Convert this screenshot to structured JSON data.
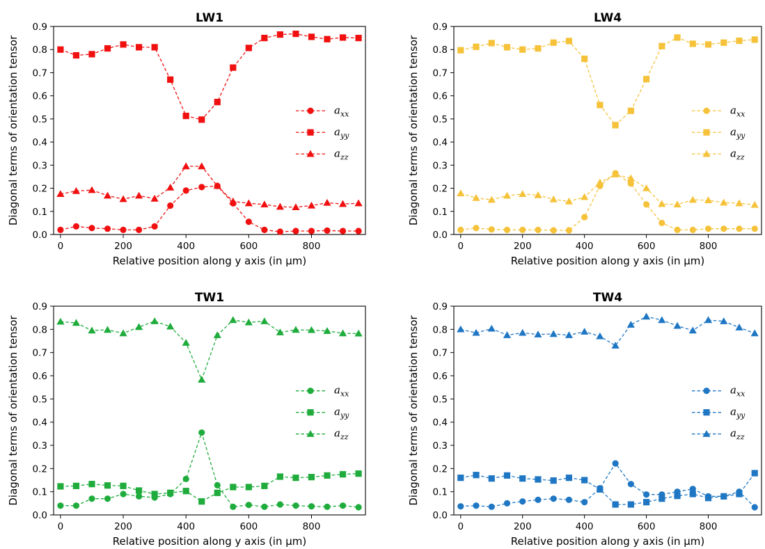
{
  "chart_data": [
    {
      "type": "line",
      "title": "LW1",
      "color": "#f01010",
      "xlabel": "Relative position along y axis (in μm)",
      "ylabel": "Diagonal terms of orientation tensor",
      "xlim": [
        -22,
        972
      ],
      "ylim": [
        0.0,
        0.9
      ],
      "xticks": [
        0,
        200,
        400,
        600,
        800
      ],
      "yticks": [
        0.0,
        0.1,
        0.2,
        0.3,
        0.4,
        0.5,
        0.6,
        0.7,
        0.8,
        0.9
      ],
      "grid": false,
      "legend": "center-right",
      "x": [
        0,
        50,
        100,
        150,
        200,
        250,
        300,
        350,
        400,
        450,
        500,
        550,
        600,
        650,
        700,
        750,
        800,
        850,
        900,
        950
      ],
      "series": [
        {
          "name": "a_xx",
          "legend_base": "a",
          "legend_sub": "xx",
          "marker": "circle",
          "values": [
            0.02,
            0.035,
            0.028,
            0.025,
            0.02,
            0.02,
            0.035,
            0.125,
            0.19,
            0.205,
            0.21,
            0.135,
            0.055,
            0.02,
            0.012,
            0.015,
            0.015,
            0.017,
            0.015,
            0.015
          ]
        },
        {
          "name": "a_yy",
          "legend_base": "a",
          "legend_sub": "yy",
          "marker": "square",
          "values": [
            0.8,
            0.775,
            0.78,
            0.805,
            0.822,
            0.81,
            0.81,
            0.67,
            0.513,
            0.497,
            0.573,
            0.722,
            0.807,
            0.85,
            0.865,
            0.868,
            0.855,
            0.845,
            0.852,
            0.85
          ]
        },
        {
          "name": "a_zz",
          "legend_base": "a",
          "legend_sub": "zz",
          "marker": "triangle",
          "values": [
            0.175,
            0.188,
            0.192,
            0.168,
            0.153,
            0.168,
            0.155,
            0.203,
            0.295,
            0.295,
            0.21,
            0.143,
            0.135,
            0.13,
            0.12,
            0.118,
            0.125,
            0.137,
            0.132,
            0.135
          ]
        }
      ]
    },
    {
      "type": "line",
      "title": "LW4",
      "color": "#f5c23a",
      "xlabel": "Relative position along y axis (in μm)",
      "ylabel": "Diagonal terms of orientation tensor",
      "xlim": [
        -22,
        972
      ],
      "ylim": [
        0.0,
        0.9
      ],
      "xticks": [
        0,
        200,
        400,
        600,
        800
      ],
      "yticks": [
        0.0,
        0.1,
        0.2,
        0.3,
        0.4,
        0.5,
        0.6,
        0.7,
        0.8,
        0.9
      ],
      "grid": false,
      "legend": "center-right",
      "x": [
        0,
        50,
        100,
        150,
        200,
        250,
        300,
        350,
        400,
        450,
        500,
        550,
        600,
        650,
        700,
        750,
        800,
        850,
        900,
        950
      ],
      "series": [
        {
          "name": "a_xx",
          "legend_base": "a",
          "legend_sub": "xx",
          "marker": "circle",
          "values": [
            0.02,
            0.028,
            0.022,
            0.02,
            0.02,
            0.02,
            0.018,
            0.018,
            0.075,
            0.21,
            0.265,
            0.22,
            0.13,
            0.05,
            0.02,
            0.02,
            0.025,
            0.025,
            0.025,
            0.025
          ]
        },
        {
          "name": "a_yy",
          "legend_base": "a",
          "legend_sub": "yy",
          "marker": "square",
          "values": [
            0.797,
            0.812,
            0.828,
            0.81,
            0.8,
            0.805,
            0.83,
            0.837,
            0.76,
            0.56,
            0.473,
            0.535,
            0.672,
            0.815,
            0.852,
            0.825,
            0.822,
            0.83,
            0.838,
            0.843
          ]
        },
        {
          "name": "a_zz",
          "legend_base": "a",
          "legend_sub": "zz",
          "marker": "triangle",
          "values": [
            0.178,
            0.158,
            0.15,
            0.168,
            0.175,
            0.17,
            0.152,
            0.143,
            0.162,
            0.225,
            0.26,
            0.243,
            0.2,
            0.132,
            0.13,
            0.15,
            0.148,
            0.138,
            0.135,
            0.128
          ]
        }
      ]
    },
    {
      "type": "line",
      "title": "TW1",
      "color": "#1fac3c",
      "xlabel": "Relative position along y axis (in μm)",
      "ylabel": "Diagonal terms of orientation tensor",
      "xlim": [
        -22,
        972
      ],
      "ylim": [
        0.0,
        0.9
      ],
      "xticks": [
        0,
        200,
        400,
        600,
        800
      ],
      "yticks": [
        0.0,
        0.1,
        0.2,
        0.3,
        0.4,
        0.5,
        0.6,
        0.7,
        0.8,
        0.9
      ],
      "grid": false,
      "legend": "center-right",
      "x": [
        0,
        50,
        100,
        150,
        200,
        250,
        300,
        350,
        400,
        450,
        500,
        550,
        600,
        650,
        700,
        750,
        800,
        850,
        900,
        950
      ],
      "series": [
        {
          "name": "a_xx",
          "legend_base": "a",
          "legend_sub": "xx",
          "marker": "circle",
          "values": [
            0.04,
            0.04,
            0.07,
            0.07,
            0.09,
            0.08,
            0.075,
            0.09,
            0.155,
            0.355,
            0.128,
            0.035,
            0.043,
            0.035,
            0.045,
            0.04,
            0.037,
            0.035,
            0.04,
            0.033
          ]
        },
        {
          "name": "a_yy",
          "legend_base": "a",
          "legend_sub": "yy",
          "marker": "square",
          "values": [
            0.123,
            0.125,
            0.133,
            0.127,
            0.125,
            0.105,
            0.09,
            0.095,
            0.103,
            0.058,
            0.095,
            0.12,
            0.12,
            0.125,
            0.165,
            0.16,
            0.163,
            0.17,
            0.175,
            0.178
          ]
        },
        {
          "name": "a_zz",
          "legend_base": "a",
          "legend_sub": "zz",
          "marker": "triangle",
          "values": [
            0.833,
            0.828,
            0.795,
            0.798,
            0.783,
            0.81,
            0.835,
            0.812,
            0.742,
            0.583,
            0.775,
            0.84,
            0.83,
            0.835,
            0.787,
            0.798,
            0.797,
            0.793,
            0.783,
            0.782
          ]
        }
      ]
    },
    {
      "type": "line",
      "title": "TW4",
      "color": "#1f77c4",
      "xlabel": "Relative position along y axis (in μm)",
      "ylabel": "Diagonal terms of orientation tensor",
      "xlim": [
        -22,
        972
      ],
      "ylim": [
        0.0,
        0.9
      ],
      "xticks": [
        0,
        200,
        400,
        600,
        800
      ],
      "yticks": [
        0.0,
        0.1,
        0.2,
        0.3,
        0.4,
        0.5,
        0.6,
        0.7,
        0.8,
        0.9
      ],
      "grid": false,
      "legend": "center-right",
      "x": [
        0,
        50,
        100,
        150,
        200,
        250,
        300,
        350,
        400,
        450,
        500,
        550,
        600,
        650,
        700,
        750,
        800,
        850,
        900,
        950
      ],
      "series": [
        {
          "name": "a_xx",
          "legend_base": "a",
          "legend_sub": "xx",
          "marker": "circle",
          "values": [
            0.037,
            0.04,
            0.035,
            0.05,
            0.058,
            0.065,
            0.07,
            0.065,
            0.055,
            0.115,
            0.222,
            0.133,
            0.088,
            0.088,
            0.1,
            0.112,
            0.08,
            0.08,
            0.1,
            0.033
          ]
        },
        {
          "name": "a_yy",
          "legend_base": "a",
          "legend_sub": "yy",
          "marker": "square",
          "values": [
            0.16,
            0.172,
            0.157,
            0.17,
            0.157,
            0.153,
            0.148,
            0.16,
            0.15,
            0.11,
            0.045,
            0.045,
            0.055,
            0.07,
            0.082,
            0.09,
            0.073,
            0.08,
            0.09,
            0.18
          ]
        },
        {
          "name": "a_zz",
          "legend_base": "a",
          "legend_sub": "zz",
          "marker": "triangle",
          "values": [
            0.8,
            0.785,
            0.803,
            0.775,
            0.785,
            0.778,
            0.78,
            0.775,
            0.79,
            0.77,
            0.73,
            0.82,
            0.855,
            0.84,
            0.815,
            0.795,
            0.84,
            0.835,
            0.808,
            0.783
          ]
        }
      ]
    }
  ]
}
